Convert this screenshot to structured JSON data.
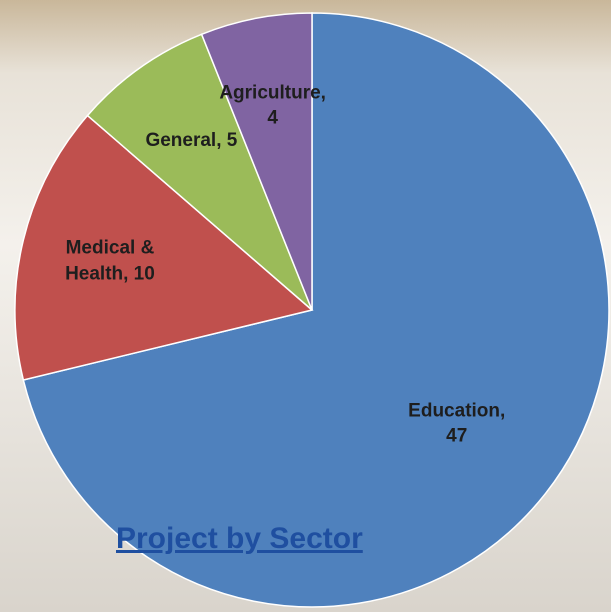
{
  "chart_data": {
    "type": "pie",
    "title": "Project by Sector",
    "values": [
      47,
      10,
      5,
      4
    ],
    "value_labels": [
      "Education, 47",
      "Medical & Health, 10",
      "General, 5",
      "Agriculture, 4"
    ],
    "colors": [
      "#4f81bd",
      "#c0504d",
      "#9bbb59",
      "#8064a2"
    ],
    "start_angle": 0,
    "direction": "clockwise"
  }
}
